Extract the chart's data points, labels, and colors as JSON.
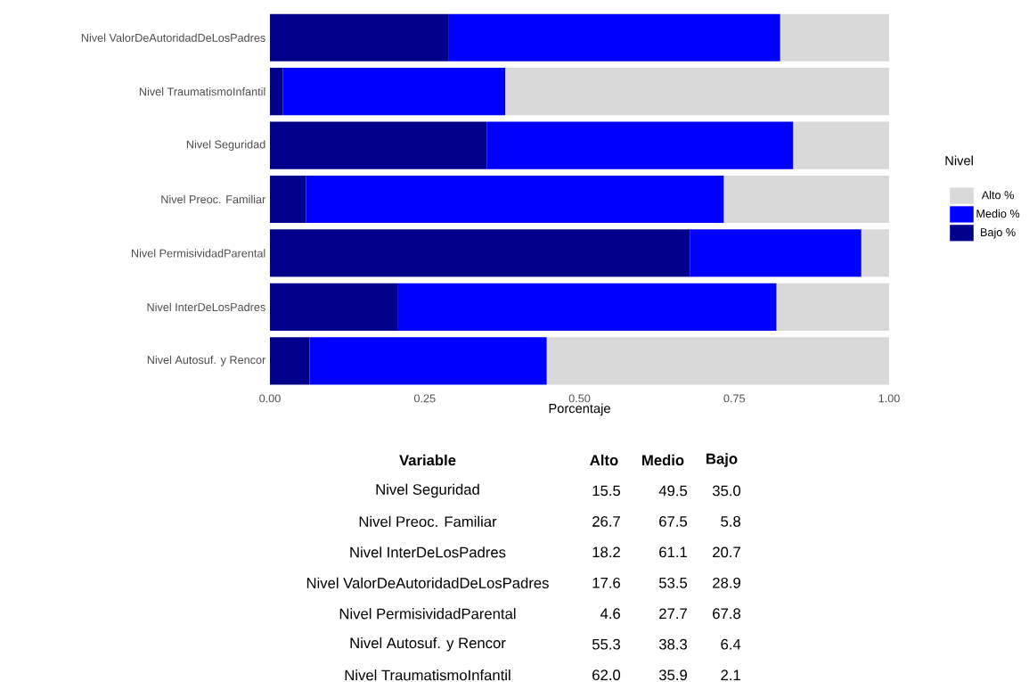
{
  "chart_data": {
    "type": "bar",
    "orientation": "horizontal",
    "stacked": true,
    "xlabel": "Porcentaje",
    "legend_title": "Nivel",
    "legend": "right",
    "categories": [
      "Nivel ValorDeAutoridadDeLosPadres",
      "Nivel TraumatismoInfantil",
      "Nivel Seguridad",
      "Nivel Preoc. Familiar",
      "Nivel PermisividadParental",
      "Nivel InterDeLosPadres",
      "Nivel Autosuf. y Rencor"
    ],
    "series": [
      {
        "name": "Bajo %",
        "color": "#00008b",
        "values": [
          0.289,
          0.021,
          0.35,
          0.058,
          0.678,
          0.207,
          0.064
        ]
      },
      {
        "name": "Medio %",
        "color": "#0000ff",
        "values": [
          0.535,
          0.359,
          0.495,
          0.675,
          0.277,
          0.611,
          0.383
        ]
      },
      {
        "name": "Alto %",
        "color": "#d9d9d9",
        "values": [
          0.176,
          0.62,
          0.155,
          0.267,
          0.046,
          0.182,
          0.553
        ]
      }
    ],
    "xlim": [
      0,
      1
    ],
    "xticks": [
      {
        "value": 0,
        "label": "0.00"
      },
      {
        "value": 0.25,
        "label": "0.25"
      },
      {
        "value": 0.5,
        "label": "0.50"
      },
      {
        "value": 0.75,
        "label": "0.75"
      },
      {
        "value": 1,
        "label": "1.00"
      }
    ],
    "annotations": [
      "Variable",
      "Alto",
      "Medio",
      "Bajo",
      "Nivel Seguridad",
      "15.5",
      "49.5",
      "35.0",
      "Nivel Preoc. Familiar",
      "26.7",
      "67.5",
      "5.8",
      "Nivel InterDeLosPadres",
      "18.2",
      "61.1",
      "20.7",
      "Nivel ValorDeAutoridadDeLosPadres",
      "17.6",
      "53.5",
      "28.9",
      "Nivel PermisividadParental",
      "4.6",
      "27.7",
      "67.8",
      "Nivel Autosuf. y Rencor",
      "55.3",
      "38.3",
      "6.4",
      "Nivel TraumatismoInfantil",
      "62.0",
      "35.9",
      "2.1"
    ]
  }
}
